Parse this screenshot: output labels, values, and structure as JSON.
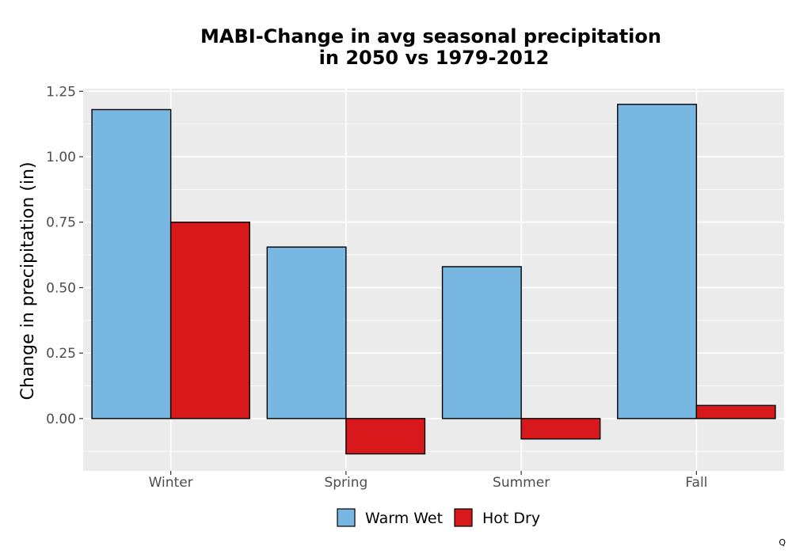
{
  "chart_data": {
    "type": "bar",
    "title_lines": [
      "MABI-Change in avg seasonal precipitation",
      "in 2050 vs 1979-2012"
    ],
    "xlabel": "",
    "ylabel": "Change in precipitation (in)",
    "categories": [
      "Winter",
      "Spring",
      "Summer",
      "Fall"
    ],
    "series": [
      {
        "name": "Warm Wet",
        "color": "#77b7e2",
        "values": [
          1.18,
          0.655,
          0.58,
          1.2
        ]
      },
      {
        "name": "Hot Dry",
        "color": "#d7191c",
        "values": [
          0.75,
          -0.135,
          -0.078,
          0.05
        ]
      }
    ],
    "ylim": [
      -0.2,
      1.26
    ],
    "yticks": [
      0.0,
      0.25,
      0.5,
      0.75,
      1.0,
      1.25
    ],
    "ytick_labels": [
      "0.00",
      "0.25",
      "0.50",
      "0.75",
      "1.00",
      "1.25"
    ],
    "grid": true,
    "legend_position": "bottom"
  },
  "corner_mark": "Q"
}
